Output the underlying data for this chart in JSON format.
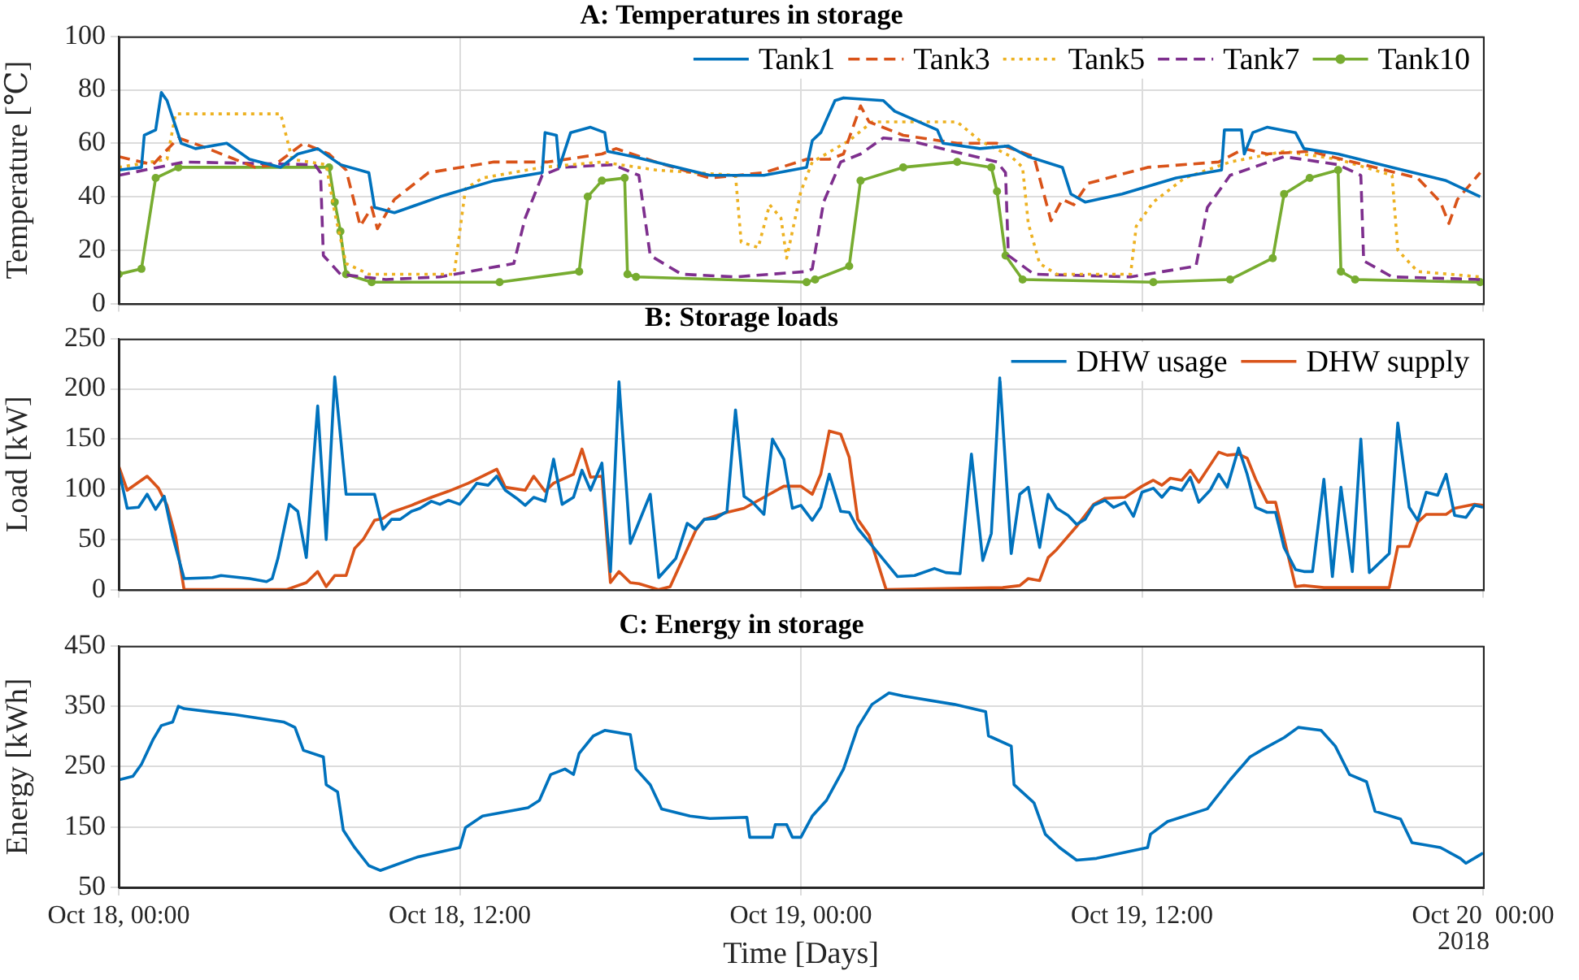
{
  "chart_data": [
    {
      "type": "line",
      "title": "A: Temperatures in storage",
      "ylabel": "Temperature [℃]",
      "xlim": [
        "2018-10-18T00:00",
        "2018-10-20T00:00"
      ],
      "ylim": [
        0,
        100
      ],
      "xticks": [
        "2018-10-18T00:00",
        "2018-10-18T12:00",
        "2018-10-19T00:00",
        "2018-10-19T12:00",
        "2018-10-20T00:00"
      ],
      "yticks": [
        0,
        20,
        40,
        60,
        80,
        100
      ],
      "grid": true,
      "legend": "top right",
      "tick_labels": "y",
      "series": [
        {
          "name": "Tank1",
          "color": "#0072bd",
          "line_style": "solid",
          "marker": "none",
          "x": [
            "2018-10-18T00:00",
            "2018-10-18T00:48",
            "2018-10-18T00:54",
            "2018-10-18T01:18",
            "2018-10-18T01:30",
            "2018-10-18T01:42",
            "2018-10-18T02:12",
            "2018-10-18T02:42",
            "2018-10-18T03:48",
            "2018-10-18T04:36",
            "2018-10-18T05:42",
            "2018-10-18T06:18",
            "2018-10-18T07:00",
            "2018-10-18T07:48",
            "2018-10-18T08:48",
            "2018-10-18T09:00",
            "2018-10-18T09:42",
            "2018-10-18T11:18",
            "2018-10-18T13:12",
            "2018-10-18T14:54",
            "2018-10-18T15:00",
            "2018-10-18T15:24",
            "2018-10-18T15:30",
            "2018-10-18T15:54",
            "2018-10-18T16:36",
            "2018-10-18T17:06",
            "2018-10-18T17:12",
            "2018-10-18T18:06",
            "2018-10-18T20:48",
            "2018-10-18T22:42",
            "2018-10-19T00:12",
            "2018-10-19T00:24",
            "2018-10-19T00:42",
            "2018-10-19T01:12",
            "2018-10-19T01:30",
            "2018-10-19T02:54",
            "2018-10-19T03:18",
            "2018-10-19T04:48",
            "2018-10-19T05:00",
            "2018-10-19T06:18",
            "2018-10-19T07:18",
            "2018-10-19T08:00",
            "2018-10-19T09:12",
            "2018-10-19T09:30",
            "2018-10-19T10:00",
            "2018-10-19T11:18",
            "2018-10-19T13:12",
            "2018-10-19T14:48",
            "2018-10-19T14:54",
            "2018-10-19T15:30",
            "2018-10-19T15:36",
            "2018-10-19T15:54",
            "2018-10-19T16:24",
            "2018-10-19T17:24",
            "2018-10-19T17:42",
            "2018-10-19T18:54",
            "2018-10-19T20:48",
            "2018-10-19T22:42",
            "2018-10-19T23:54"
          ],
          "values": [
            50,
            51,
            63,
            65,
            79,
            76,
            60,
            58,
            60,
            54,
            51,
            56,
            58,
            52,
            49,
            36,
            34,
            40,
            46,
            49,
            64,
            63,
            51,
            64,
            66,
            64,
            57,
            55,
            48,
            48,
            51,
            61,
            64,
            76,
            77,
            76,
            72,
            65,
            60,
            58,
            59,
            55,
            51,
            41,
            38,
            41,
            47,
            50,
            65,
            65,
            56,
            64,
            66,
            64,
            58,
            56,
            51,
            46,
            40
          ]
        },
        {
          "name": "Tank3",
          "color": "#d95319",
          "line_style": "dashed",
          "marker": "none",
          "x": [
            "2018-10-18T00:00",
            "2018-10-18T01:12",
            "2018-10-18T02:06",
            "2018-10-18T02:54",
            "2018-10-18T04:48",
            "2018-10-18T05:30",
            "2018-10-18T06:30",
            "2018-10-18T07:24",
            "2018-10-18T08:00",
            "2018-10-18T08:30",
            "2018-10-18T08:54",
            "2018-10-18T09:06",
            "2018-10-18T09:42",
            "2018-10-18T10:54",
            "2018-10-18T13:12",
            "2018-10-18T15:06",
            "2018-10-18T17:00",
            "2018-10-18T17:30",
            "2018-10-18T18:54",
            "2018-10-18T20:48",
            "2018-10-18T22:42",
            "2018-10-19T00:12",
            "2018-10-19T01:00",
            "2018-10-19T01:30",
            "2018-10-19T02:06",
            "2018-10-19T02:24",
            "2018-10-19T03:36",
            "2018-10-19T05:30",
            "2018-10-19T06:54",
            "2018-10-19T08:12",
            "2018-10-19T08:48",
            "2018-10-19T09:12",
            "2018-10-19T09:36",
            "2018-10-19T10:06",
            "2018-10-19T12:12",
            "2018-10-19T14:42",
            "2018-10-19T15:36",
            "2018-10-19T16:24",
            "2018-10-19T17:54",
            "2018-10-19T19:48",
            "2018-10-19T21:42",
            "2018-10-19T22:30",
            "2018-10-19T22:48",
            "2018-10-19T23:06",
            "2018-10-19T23:54"
          ],
          "values": [
            55,
            52,
            62,
            59,
            51,
            52,
            60,
            56,
            50,
            29,
            36,
            28,
            39,
            49,
            53,
            53,
            56,
            58,
            53,
            47,
            49,
            54,
            54,
            56,
            74,
            68,
            63,
            60,
            60,
            55,
            31,
            39,
            37,
            45,
            51,
            53,
            58,
            56,
            57,
            52,
            47,
            38,
            30,
            39,
            49
          ]
        },
        {
          "name": "Tank5",
          "color": "#edb120",
          "line_style": "dotted",
          "marker": "none",
          "x": [
            "2018-10-18T00:00",
            "2018-10-18T01:42",
            "2018-10-18T02:00",
            "2018-10-18T05:42",
            "2018-10-18T06:06",
            "2018-10-18T07:18",
            "2018-10-18T07:36",
            "2018-10-18T08:00",
            "2018-10-18T08:48",
            "2018-10-18T11:48",
            "2018-10-18T12:12",
            "2018-10-18T12:48",
            "2018-10-18T14:54",
            "2018-10-18T17:00",
            "2018-10-18T18:54",
            "2018-10-18T21:42",
            "2018-10-18T21:54",
            "2018-10-18T22:30",
            "2018-10-18T22:54",
            "2018-10-18T23:18",
            "2018-10-18T23:30",
            "2018-10-19T00:00",
            "2018-10-19T00:24",
            "2018-10-19T01:42",
            "2018-10-19T02:30",
            "2018-10-19T05:30",
            "2018-10-19T06:18",
            "2018-10-19T07:24",
            "2018-10-19T07:48",
            "2018-10-19T08:00",
            "2018-10-19T08:24",
            "2018-10-19T09:00",
            "2018-10-19T11:36",
            "2018-10-19T11:48",
            "2018-10-19T12:24",
            "2018-10-19T13:30",
            "2018-10-19T15:06",
            "2018-10-19T17:00",
            "2018-10-19T18:54",
            "2018-10-19T20:48",
            "2018-10-19T21:00",
            "2018-10-19T21:42",
            "2018-10-19T23:54"
          ],
          "values": [
            51,
            54,
            71,
            71,
            54,
            52,
            34,
            15,
            11,
            11,
            43,
            47,
            51,
            53,
            50,
            48,
            23,
            21,
            37,
            32,
            17,
            42,
            53,
            61,
            68,
            68,
            61,
            55,
            51,
            30,
            15,
            11,
            11,
            29,
            38,
            47,
            53,
            57,
            54,
            48,
            20,
            12,
            10
          ]
        },
        {
          "name": "Tank7",
          "color": "#7e2f8e",
          "line_style": "dashed",
          "marker": "none",
          "x": [
            "2018-10-18T00:00",
            "2018-10-18T02:18",
            "2018-10-18T06:54",
            "2018-10-18T07:06",
            "2018-10-18T07:12",
            "2018-10-18T07:48",
            "2018-10-18T09:24",
            "2018-10-18T11:18",
            "2018-10-18T13:54",
            "2018-10-18T14:18",
            "2018-10-18T14:54",
            "2018-10-18T15:36",
            "2018-10-18T17:24",
            "2018-10-18T18:18",
            "2018-10-18T18:42",
            "2018-10-18T19:48",
            "2018-10-18T21:42",
            "2018-10-19T00:12",
            "2018-10-19T00:24",
            "2018-10-19T00:48",
            "2018-10-19T01:24",
            "2018-10-19T02:06",
            "2018-10-19T02:54",
            "2018-10-19T03:48",
            "2018-10-19T06:54",
            "2018-10-19T07:12",
            "2018-10-19T07:18",
            "2018-10-19T08:12",
            "2018-10-19T11:36",
            "2018-10-19T13:54",
            "2018-10-19T14:18",
            "2018-10-19T15:06",
            "2018-10-19T17:00",
            "2018-10-19T18:54",
            "2018-10-19T19:42",
            "2018-10-19T19:48",
            "2018-10-19T20:48",
            "2018-10-19T23:54"
          ],
          "values": [
            48,
            53,
            52,
            49,
            18,
            11,
            9,
            10,
            15,
            32,
            48,
            51,
            52,
            48,
            18,
            11,
            10,
            12,
            13,
            38,
            53,
            56,
            62,
            61,
            53,
            49,
            18,
            11,
            10,
            14,
            36,
            48,
            55,
            52,
            48,
            16,
            10,
            9
          ]
        },
        {
          "name": "Tank10",
          "color": "#77ac30",
          "line_style": "solid",
          "marker": "circle",
          "x": [
            "2018-10-18T00:00",
            "2018-10-18T00:48",
            "2018-10-18T01:18",
            "2018-10-18T02:06",
            "2018-10-18T07:24",
            "2018-10-18T07:36",
            "2018-10-18T07:48",
            "2018-10-18T08:00",
            "2018-10-18T08:54",
            "2018-10-18T13:24",
            "2018-10-18T16:12",
            "2018-10-18T16:30",
            "2018-10-18T17:00",
            "2018-10-18T17:48",
            "2018-10-18T17:54",
            "2018-10-18T18:12",
            "2018-10-19T00:12",
            "2018-10-19T00:30",
            "2018-10-19T01:42",
            "2018-10-19T02:06",
            "2018-10-19T03:36",
            "2018-10-19T05:30",
            "2018-10-19T06:42",
            "2018-10-19T06:54",
            "2018-10-19T07:12",
            "2018-10-19T07:48",
            "2018-10-19T12:24",
            "2018-10-19T15:06",
            "2018-10-19T16:36",
            "2018-10-19T17:00",
            "2018-10-19T17:54",
            "2018-10-19T18:54",
            "2018-10-19T19:00",
            "2018-10-19T19:30",
            "2018-10-19T23:54"
          ],
          "values": [
            11,
            13,
            47,
            51,
            51,
            38,
            27,
            11,
            8,
            8,
            12,
            40,
            46,
            47,
            11,
            10,
            8,
            9,
            14,
            46,
            51,
            53,
            51,
            42,
            18,
            9,
            8,
            9,
            17,
            41,
            47,
            50,
            12,
            9,
            8
          ]
        }
      ]
    },
    {
      "type": "line",
      "title": "B: Storage loads",
      "ylabel": "Load [kW]",
      "xlim": [
        "2018-10-18T00:00",
        "2018-10-20T00:00"
      ],
      "ylim": [
        0,
        250
      ],
      "xticks": [
        "2018-10-18T00:00",
        "2018-10-18T12:00",
        "2018-10-19T00:00",
        "2018-10-19T12:00",
        "2018-10-20T00:00"
      ],
      "yticks": [
        0,
        50,
        100,
        150,
        200,
        250
      ],
      "grid": true,
      "legend": "top right",
      "tick_labels": "y",
      "series": [
        {
          "name": "DHW usage",
          "color": "#0072bd",
          "x": [
            "2018-10-18T00:00",
            "2018-10-18T00:18",
            "2018-10-18T00:42",
            "2018-10-18T01:00",
            "2018-10-18T01:18",
            "2018-10-18T01:36",
            "2018-10-18T01:54",
            "2018-10-18T02:18",
            "2018-10-18T03:18",
            "2018-10-18T03:36",
            "2018-10-18T04:36",
            "2018-10-18T05:12",
            "2018-10-18T05:24",
            "2018-10-18T05:36",
            "2018-10-18T06:00",
            "2018-10-18T06:18",
            "2018-10-18T06:36",
            "2018-10-18T07:00",
            "2018-10-18T07:18",
            "2018-10-18T07:36",
            "2018-10-18T08:00",
            "2018-10-18T09:00",
            "2018-10-18T09:18",
            "2018-10-18T09:36",
            "2018-10-18T09:54",
            "2018-10-18T10:18",
            "2018-10-18T10:36",
            "2018-10-18T11:00",
            "2018-10-18T11:18",
            "2018-10-18T11:36",
            "2018-10-18T12:00",
            "2018-10-18T12:18",
            "2018-10-18T12:36",
            "2018-10-18T13:00",
            "2018-10-18T13:18",
            "2018-10-18T13:36",
            "2018-10-18T14:00",
            "2018-10-18T14:18",
            "2018-10-18T14:36",
            "2018-10-18T15:00",
            "2018-10-18T15:18",
            "2018-10-18T15:36",
            "2018-10-18T16:00",
            "2018-10-18T16:18",
            "2018-10-18T16:36",
            "2018-10-18T17:00",
            "2018-10-18T17:18",
            "2018-10-18T17:36",
            "2018-10-18T18:00",
            "2018-10-18T18:42",
            "2018-10-18T19:00",
            "2018-10-18T19:36",
            "2018-10-18T20:00",
            "2018-10-18T20:18",
            "2018-10-18T20:36",
            "2018-10-18T21:00",
            "2018-10-18T21:24",
            "2018-10-18T21:42",
            "2018-10-18T22:00",
            "2018-10-18T22:18",
            "2018-10-18T22:42",
            "2018-10-18T23:00",
            "2018-10-18T23:24",
            "2018-10-18T23:42",
            "2018-10-19T00:00",
            "2018-10-19T00:24",
            "2018-10-19T00:42",
            "2018-10-19T01:00",
            "2018-10-19T01:24",
            "2018-10-19T01:42",
            "2018-10-19T02:00",
            "2018-10-19T02:42",
            "2018-10-19T03:24",
            "2018-10-19T04:00",
            "2018-10-19T04:42",
            "2018-10-19T05:06",
            "2018-10-19T05:36",
            "2018-10-19T06:00",
            "2018-10-19T06:24",
            "2018-10-19T06:42",
            "2018-10-19T07:00",
            "2018-10-19T07:24",
            "2018-10-19T07:42",
            "2018-10-19T08:00",
            "2018-10-19T08:24",
            "2018-10-19T08:42",
            "2018-10-19T09:00",
            "2018-10-19T09:24",
            "2018-10-19T09:42",
            "2018-10-19T10:00",
            "2018-10-19T10:18",
            "2018-10-19T10:42",
            "2018-10-19T11:00",
            "2018-10-19T11:24",
            "2018-10-19T11:42",
            "2018-10-19T12:00",
            "2018-10-19T12:24",
            "2018-10-19T12:42",
            "2018-10-19T13:00",
            "2018-10-19T13:24",
            "2018-10-19T13:42",
            "2018-10-19T14:00",
            "2018-10-19T14:24",
            "2018-10-19T14:42",
            "2018-10-19T15:00",
            "2018-10-19T15:24",
            "2018-10-19T15:42",
            "2018-10-19T16:00",
            "2018-10-19T16:24",
            "2018-10-19T16:42",
            "2018-10-19T17:00",
            "2018-10-19T17:24",
            "2018-10-19T17:42",
            "2018-10-19T18:00",
            "2018-10-19T18:24",
            "2018-10-19T18:42",
            "2018-10-19T19:00",
            "2018-10-19T19:24",
            "2018-10-19T19:42",
            "2018-10-19T20:00",
            "2018-10-19T20:42",
            "2018-10-19T21:00",
            "2018-10-19T21:24",
            "2018-10-19T21:42",
            "2018-10-19T22:00",
            "2018-10-19T22:24",
            "2018-10-19T22:42",
            "2018-10-19T23:00",
            "2018-10-19T23:24",
            "2018-10-19T23:42",
            "2018-10-20T00:00"
          ],
          "values": [
            120,
            81,
            82,
            95,
            80,
            93,
            53,
            11,
            12,
            14,
            11,
            8,
            11,
            31,
            85,
            78,
            32,
            183,
            50,
            212,
            95,
            95,
            60,
            70,
            70,
            78,
            81,
            88,
            85,
            89,
            85,
            95,
            106,
            104,
            113,
            99,
            91,
            84,
            92,
            88,
            130,
            85,
            92,
            119,
            99,
            126,
            18,
            207,
            46,
            95,
            12,
            31,
            66,
            60,
            70,
            71,
            78,
            179,
            93,
            87,
            75,
            150,
            130,
            81,
            84,
            69,
            82,
            115,
            78,
            77,
            61,
            37,
            13,
            14,
            21,
            17,
            16,
            135,
            29,
            56,
            211,
            36,
            95,
            102,
            42,
            95,
            81,
            74,
            65,
            70,
            84,
            89,
            82,
            87,
            73,
            97,
            101,
            92,
            102,
            99,
            112,
            87,
            99,
            115,
            102,
            141,
            115,
            82,
            77,
            77,
            42,
            20,
            18,
            18,
            110,
            13,
            102,
            18,
            150,
            17,
            36,
            166,
            82,
            69,
            97,
            94,
            115,
            74,
            72,
            84,
            82
          ]
        },
        {
          "name": "DHW supply",
          "color": "#d95319",
          "x": [
            "2018-10-18T00:00",
            "2018-10-18T00:18",
            "2018-10-18T01:00",
            "2018-10-18T01:24",
            "2018-10-18T01:42",
            "2018-10-18T02:00",
            "2018-10-18T02:18",
            "2018-10-18T05:54",
            "2018-10-18T06:36",
            "2018-10-18T07:00",
            "2018-10-18T07:18",
            "2018-10-18T07:36",
            "2018-10-18T08:00",
            "2018-10-18T08:18",
            "2018-10-18T08:36",
            "2018-10-18T09:00",
            "2018-10-18T09:18",
            "2018-10-18T09:36",
            "2018-10-18T10:18",
            "2018-10-18T11:00",
            "2018-10-18T11:36",
            "2018-10-18T12:18",
            "2018-10-18T13:18",
            "2018-10-18T13:36",
            "2018-10-18T14:18",
            "2018-10-18T14:36",
            "2018-10-18T15:00",
            "2018-10-18T15:18",
            "2018-10-18T16:00",
            "2018-10-18T16:18",
            "2018-10-18T16:36",
            "2018-10-18T17:00",
            "2018-10-18T17:18",
            "2018-10-18T17:36",
            "2018-10-18T18:00",
            "2018-10-18T18:18",
            "2018-10-18T19:00",
            "2018-10-18T19:24",
            "2018-10-18T20:18",
            "2018-10-18T20:36",
            "2018-10-18T21:24",
            "2018-10-18T22:00",
            "2018-10-18T22:42",
            "2018-10-18T23:24",
            "2018-10-19T00:00",
            "2018-10-19T00:24",
            "2018-10-19T00:42",
            "2018-10-19T01:00",
            "2018-10-19T01:24",
            "2018-10-19T01:42",
            "2018-10-19T02:00",
            "2018-10-19T02:24",
            "2018-10-19T03:00",
            "2018-10-19T07:06",
            "2018-10-19T07:42",
            "2018-10-19T08:00",
            "2018-10-19T08:24",
            "2018-10-19T08:42",
            "2018-10-19T09:00",
            "2018-10-19T09:42",
            "2018-10-19T10:18",
            "2018-10-19T10:42",
            "2018-10-19T11:24",
            "2018-10-19T12:00",
            "2018-10-19T12:24",
            "2018-10-19T12:42",
            "2018-10-19T13:00",
            "2018-10-19T13:24",
            "2018-10-19T13:42",
            "2018-10-19T14:00",
            "2018-10-19T14:42",
            "2018-10-19T15:00",
            "2018-10-19T15:24",
            "2018-10-19T15:42",
            "2018-10-19T16:00",
            "2018-10-19T16:24",
            "2018-10-19T16:42",
            "2018-10-19T17:24",
            "2018-10-19T17:42",
            "2018-10-19T18:24",
            "2018-10-19T20:42",
            "2018-10-19T21:00",
            "2018-10-19T21:24",
            "2018-10-19T21:42",
            "2018-10-19T22:00",
            "2018-10-19T22:42",
            "2018-10-19T23:00",
            "2018-10-19T23:42",
            "2018-10-20T00:00"
          ],
          "values": [
            123,
            99,
            113,
            101,
            84,
            53,
            0,
            0,
            7,
            18,
            3,
            14,
            14,
            41,
            50,
            69,
            71,
            77,
            84,
            92,
            98,
            106,
            120,
            102,
            99,
            113,
            98,
            106,
            115,
            140,
            112,
            113,
            7,
            18,
            7,
            6,
            0,
            3,
            59,
            70,
            77,
            81,
            92,
            103,
            103,
            95,
            115,
            158,
            155,
            132,
            70,
            54,
            0,
            2,
            4,
            11,
            9,
            32,
            40,
            63,
            85,
            91,
            92,
            103,
            109,
            104,
            111,
            109,
            119,
            107,
            137,
            134,
            135,
            131,
            110,
            87,
            87,
            3,
            4,
            2,
            2,
            43,
            43,
            67,
            75,
            75,
            81,
            85,
            84
          ]
        }
      ]
    },
    {
      "type": "line",
      "title": "C: Energy in storage",
      "xlabel": "Time [Days]",
      "ylabel": "Energy [kWh]",
      "xlim": [
        "2018-10-18T00:00",
        "2018-10-20T00:00"
      ],
      "ylim": [
        50,
        450
      ],
      "xticks": [
        {
          "value": "2018-10-18T00:00",
          "label": "Oct 18, 00:00"
        },
        {
          "value": "2018-10-18T12:00",
          "label": "Oct 18, 12:00"
        },
        {
          "value": "2018-10-19T00:00",
          "label": "Oct 19, 00:00"
        },
        {
          "value": "2018-10-19T12:00",
          "label": "Oct 19, 12:00"
        },
        {
          "value": "2018-10-20T00:00",
          "label": "Oct 20  00:00"
        }
      ],
      "yticks": [
        50,
        150,
        250,
        350,
        450
      ],
      "grid": true,
      "color": "#0072bd",
      "annotations": [
        "2018"
      ],
      "x": [
        "2018-10-18T00:00",
        "2018-10-18T00:30",
        "2018-10-18T00:48",
        "2018-10-18T01:12",
        "2018-10-18T01:30",
        "2018-10-18T01:54",
        "2018-10-18T02:06",
        "2018-10-18T02:18",
        "2018-10-18T04:06",
        "2018-10-18T05:48",
        "2018-10-18T06:12",
        "2018-10-18T06:30",
        "2018-10-18T07:12",
        "2018-10-18T07:18",
        "2018-10-18T07:42",
        "2018-10-18T07:54",
        "2018-10-18T08:18",
        "2018-10-18T08:48",
        "2018-10-18T09:12",
        "2018-10-18T10:30",
        "2018-10-18T12:00",
        "2018-10-18T12:12",
        "2018-10-18T12:48",
        "2018-10-18T14:24",
        "2018-10-18T14:48",
        "2018-10-18T15:12",
        "2018-10-18T15:42",
        "2018-10-18T16:00",
        "2018-10-18T16:12",
        "2018-10-18T16:42",
        "2018-10-18T17:06",
        "2018-10-18T18:00",
        "2018-10-18T18:12",
        "2018-10-18T18:42",
        "2018-10-18T19:06",
        "2018-10-18T20:06",
        "2018-10-18T20:48",
        "2018-10-18T22:06",
        "2018-10-18T22:12",
        "2018-10-18T23:00",
        "2018-10-18T23:06",
        "2018-10-18T23:30",
        "2018-10-18T23:42",
        "2018-10-19T00:00",
        "2018-10-19T00:24",
        "2018-10-19T00:54",
        "2018-10-19T01:30",
        "2018-10-19T02:00",
        "2018-10-19T02:30",
        "2018-10-19T03:06",
        "2018-10-19T03:36",
        "2018-10-19T05:24",
        "2018-10-19T06:30",
        "2018-10-19T06:36",
        "2018-10-19T07:24",
        "2018-10-19T07:30",
        "2018-10-19T08:12",
        "2018-10-19T08:36",
        "2018-10-19T09:06",
        "2018-10-19T09:42",
        "2018-10-19T10:24",
        "2018-10-19T12:12",
        "2018-10-19T12:18",
        "2018-10-19T12:54",
        "2018-10-19T14:18",
        "2018-10-19T15:06",
        "2018-10-19T15:48",
        "2018-10-19T16:18",
        "2018-10-19T17:00",
        "2018-10-19T17:30",
        "2018-10-19T18:18",
        "2018-10-19T18:48",
        "2018-10-19T19:18",
        "2018-10-19T19:54",
        "2018-10-19T20:12",
        "2018-10-19T21:06",
        "2018-10-19T21:30",
        "2018-10-19T22:30",
        "2018-10-19T23:12",
        "2018-10-19T23:24",
        "2018-10-19T23:54",
        "2018-10-20T00:00"
      ],
      "values": [
        228,
        234,
        254,
        294,
        318,
        324,
        350,
        346,
        336,
        324,
        315,
        277,
        266,
        220,
        208,
        145,
        116,
        86,
        78,
        100,
        116,
        149,
        168,
        182,
        194,
        237,
        246,
        237,
        272,
        301,
        310,
        303,
        246,
        220,
        180,
        168,
        164,
        166,
        133,
        133,
        154,
        154,
        133,
        133,
        168,
        194,
        246,
        315,
        353,
        372,
        367,
        353,
        341,
        301,
        284,
        220,
        190,
        138,
        116,
        95,
        98,
        116,
        138,
        159,
        180,
        228,
        266,
        280,
        298,
        315,
        310,
        284,
        237,
        225,
        176,
        163,
        124,
        116,
        98,
        90,
        104,
        107
      ]
    }
  ]
}
